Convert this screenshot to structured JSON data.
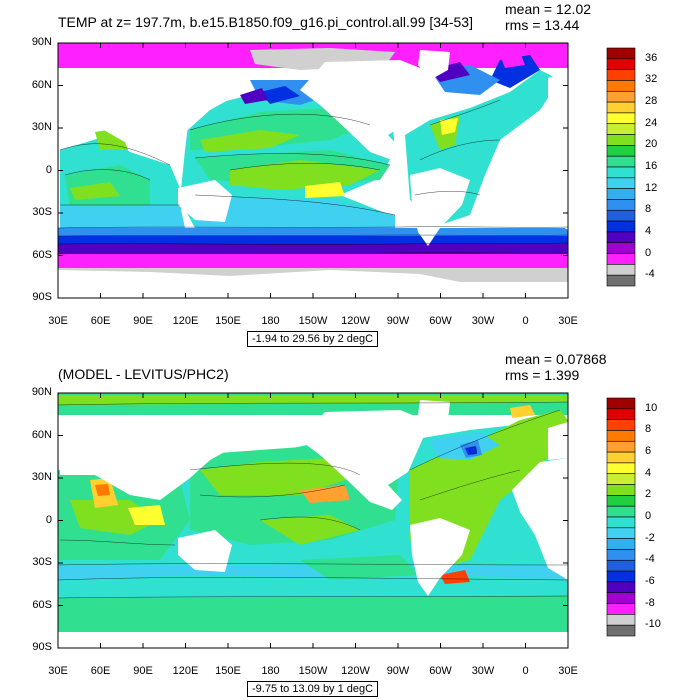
{
  "panels": [
    {
      "title": "TEMP at z= 197.7m, b.e15.B1850.f09_g16.pi_control.all.99 [34-53]",
      "mean_text": "mean = 12.02",
      "rms_text": "rms = 13.44",
      "range_text": "-1.94 to 29.56 by 2 degC",
      "lat_labels": [
        "90N",
        "60N",
        "30N",
        "0",
        "30S",
        "60S",
        "90S"
      ],
      "lon_labels": [
        "30E",
        "60E",
        "90E",
        "120E",
        "150E",
        "180",
        "150W",
        "120W",
        "90W",
        "60W",
        "30W",
        "0",
        "30E"
      ],
      "colorbar_labels": [
        "36",
        "32",
        "28",
        "24",
        "20",
        "16",
        "12",
        "8",
        "4",
        "0",
        "-4"
      ],
      "colorbar_colors": [
        "#a00000",
        "#e00000",
        "#ff4000",
        "#ff7a00",
        "#ffa030",
        "#ffd030",
        "#ffff30",
        "#c8f030",
        "#80e020",
        "#20d040",
        "#30e090",
        "#30e0d0",
        "#40d0f0",
        "#30b0f0",
        "#3090f0",
        "#2060e0",
        "#0030e0",
        "#5000c0",
        "#a000d0",
        "#ff20ff",
        "#d0d0d0",
        "#707070"
      ]
    },
    {
      "title": "(MODEL - LEVITUS/PHC2)",
      "mean_text": "mean = 0.07868",
      "rms_text": "rms = 1.399",
      "range_text": "-9.75 to 13.09 by 1 degC",
      "lat_labels": [
        "90N",
        "60N",
        "30N",
        "0",
        "30S",
        "60S",
        "90S"
      ],
      "lon_labels": [
        "30E",
        "60E",
        "90E",
        "120E",
        "150E",
        "180",
        "150W",
        "120W",
        "90W",
        "60W",
        "30W",
        "0",
        "30E"
      ],
      "colorbar_labels": [
        "10",
        "8",
        "6",
        "4",
        "2",
        "0",
        "-2",
        "-4",
        "-6",
        "-8",
        "-10"
      ],
      "colorbar_colors": [
        "#a00000",
        "#e00000",
        "#ff4000",
        "#ff7a00",
        "#ffa030",
        "#ffd030",
        "#ffff30",
        "#c8f030",
        "#80e020",
        "#20d040",
        "#30e090",
        "#30e0d0",
        "#40d0f0",
        "#30b0f0",
        "#3090f0",
        "#2060e0",
        "#0030e0",
        "#5000c0",
        "#a000d0",
        "#ff20ff",
        "#d0d0d0",
        "#707070"
      ]
    }
  ]
}
